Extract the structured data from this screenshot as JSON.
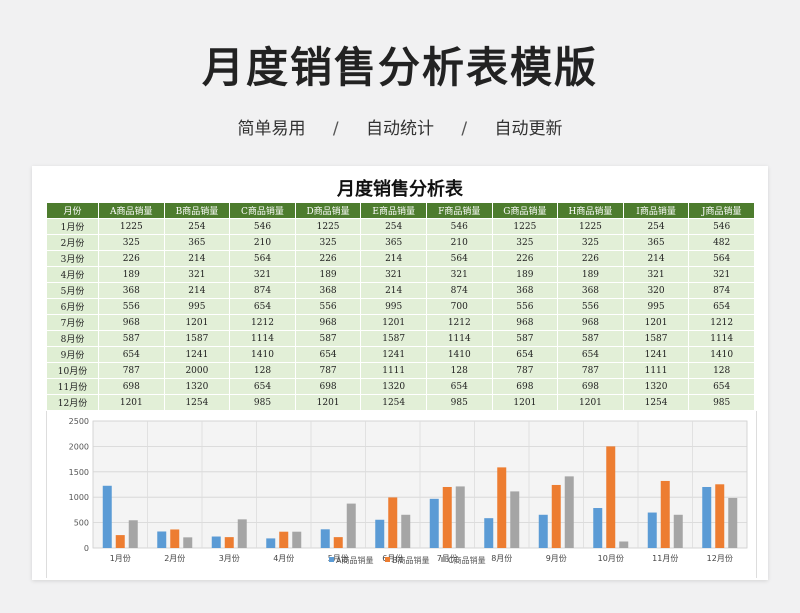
{
  "header": {
    "title": "月度销售分析表模版",
    "tags": [
      "简单易用",
      "自动统计",
      "自动更新"
    ],
    "separator": "/"
  },
  "sheet": {
    "title": "月度销售分析表",
    "columns": [
      "月份",
      "A商品销量",
      "B商品销量",
      "C商品销量",
      "D商品销量",
      "E商品销量",
      "F商品销量",
      "G商品销量",
      "H商品销量",
      "I商品销量",
      "J商品销量"
    ],
    "rows": [
      [
        "1月份",
        "1225",
        "254",
        "546",
        "1225",
        "254",
        "546",
        "1225",
        "1225",
        "254",
        "546"
      ],
      [
        "2月份",
        "325",
        "365",
        "210",
        "325",
        "365",
        "210",
        "325",
        "325",
        "365",
        "482"
      ],
      [
        "3月份",
        "226",
        "214",
        "564",
        "226",
        "214",
        "564",
        "226",
        "226",
        "214",
        "564"
      ],
      [
        "4月份",
        "189",
        "321",
        "321",
        "189",
        "321",
        "321",
        "189",
        "189",
        "321",
        "321"
      ],
      [
        "5月份",
        "368",
        "214",
        "874",
        "368",
        "214",
        "874",
        "368",
        "368",
        "320",
        "874"
      ],
      [
        "6月份",
        "556",
        "995",
        "654",
        "556",
        "995",
        "700",
        "556",
        "556",
        "995",
        "654"
      ],
      [
        "7月份",
        "968",
        "1201",
        "1212",
        "968",
        "1201",
        "1212",
        "968",
        "968",
        "1201",
        "1212"
      ],
      [
        "8月份",
        "587",
        "1587",
        "1114",
        "587",
        "1587",
        "1114",
        "587",
        "587",
        "1587",
        "1114"
      ],
      [
        "9月份",
        "654",
        "1241",
        "1410",
        "654",
        "1241",
        "1410",
        "654",
        "654",
        "1241",
        "1410"
      ],
      [
        "10月份",
        "787",
        "2000",
        "128",
        "787",
        "1111",
        "128",
        "787",
        "787",
        "1111",
        "128"
      ],
      [
        "11月份",
        "698",
        "1320",
        "654",
        "698",
        "1320",
        "654",
        "698",
        "698",
        "1320",
        "654"
      ],
      [
        "12月份",
        "1201",
        "1254",
        "985",
        "1201",
        "1254",
        "985",
        "1201",
        "1201",
        "1254",
        "985"
      ]
    ]
  },
  "chart_data": {
    "type": "bar",
    "categories": [
      "1月份",
      "2月份",
      "3月份",
      "4月份",
      "5月份",
      "6月份",
      "7月份",
      "8月份",
      "9月份",
      "10月份",
      "11月份",
      "12月份"
    ],
    "series": [
      {
        "name": "A商品销量",
        "color": "#5b9bd5",
        "values": [
          1225,
          325,
          226,
          189,
          368,
          556,
          968,
          587,
          654,
          787,
          698,
          1201
        ]
      },
      {
        "name": "B商品销量",
        "color": "#ed7d31",
        "values": [
          254,
          365,
          214,
          321,
          214,
          995,
          1201,
          1587,
          1241,
          2000,
          1320,
          1254
        ]
      },
      {
        "name": "C商品销量",
        "color": "#a5a5a5",
        "values": [
          546,
          210,
          564,
          321,
          874,
          654,
          1212,
          1114,
          1410,
          128,
          654,
          985
        ]
      }
    ],
    "ylim": [
      0,
      2500
    ],
    "yticks": [
      0,
      500,
      1000,
      1500,
      2000,
      2500
    ],
    "grid": true,
    "legend": "bottom"
  }
}
